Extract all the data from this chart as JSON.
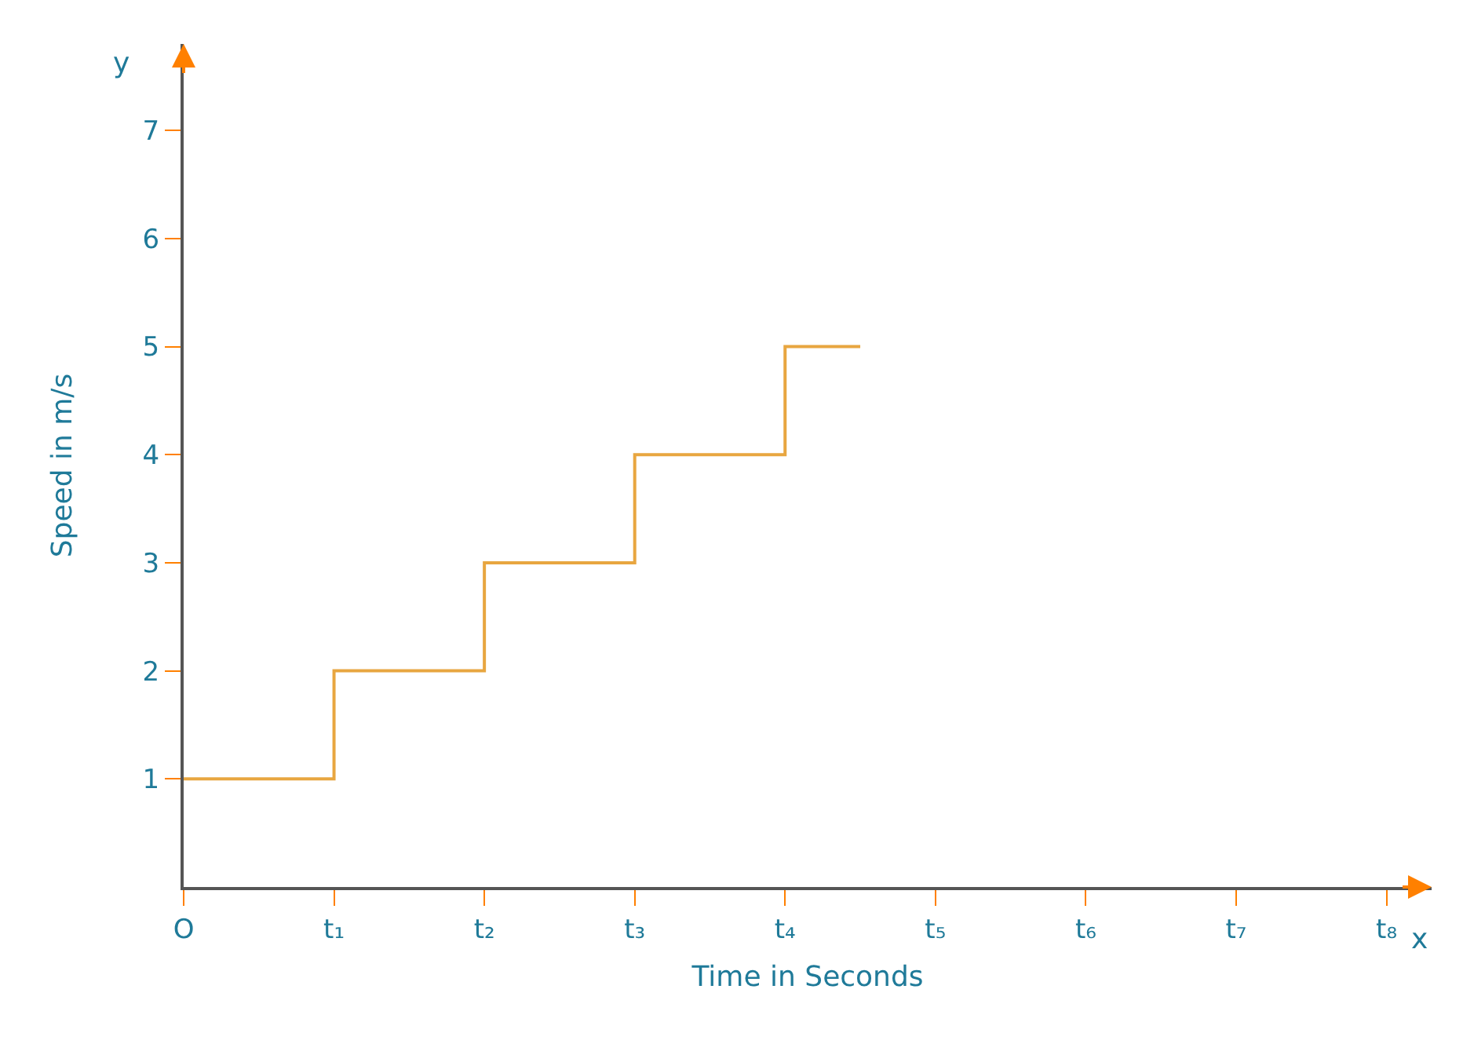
{
  "chart_data": {
    "type": "step",
    "xlabel": "Time in Seconds",
    "ylabel": "Speed in m/s",
    "annotations": [
      "x",
      "y"
    ],
    "categories": [
      "O",
      null,
      "t₁",
      null,
      "t₂",
      null,
      "t₃",
      null,
      "t₄",
      null,
      "t₅",
      null,
      "t₆",
      null,
      "t₇",
      null,
      "t₈"
    ],
    "series": [
      {
        "color": "#e8a640",
        "values": [
          1,
          1,
          2,
          2,
          3,
          3,
          4,
          4,
          5,
          5,
          null,
          null,
          null,
          null,
          null,
          null,
          null
        ]
      }
    ],
    "ylim": [
      0,
      7.8
    ],
    "yticks": [
      1,
      2,
      3,
      4,
      5,
      6,
      7
    ],
    "marker": "none",
    "line_style": "solid"
  }
}
